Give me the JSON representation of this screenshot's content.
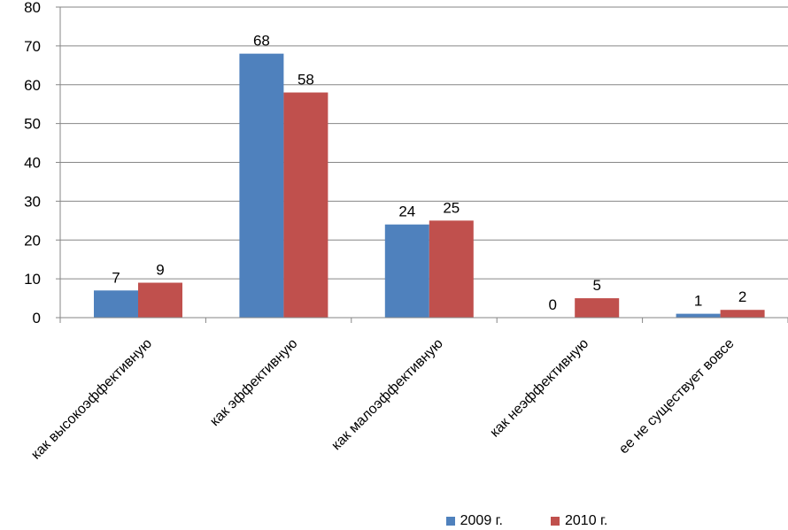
{
  "chart_data": {
    "type": "bar",
    "categories": [
      "как высокоэффективную",
      "как эффективную",
      "как малоэффективную",
      "как неэффективную",
      "ее не существует вовсе"
    ],
    "series": [
      {
        "name": "2009 г.",
        "values": [
          7,
          68,
          24,
          0,
          1
        ],
        "labels": [
          "7",
          "68",
          "24",
          "0",
          "1"
        ],
        "color": "#4f81bd"
      },
      {
        "name": "2010 г.",
        "values": [
          9,
          58,
          25,
          5,
          2
        ],
        "labels": [
          "9",
          "58",
          "25",
          "5",
          "2"
        ],
        "color": "#c0504d"
      }
    ],
    "ylim": [
      0,
      80
    ],
    "yticks": [
      0,
      10,
      20,
      30,
      40,
      50,
      60,
      70,
      80
    ],
    "grid": true,
    "legend": "bottom"
  }
}
